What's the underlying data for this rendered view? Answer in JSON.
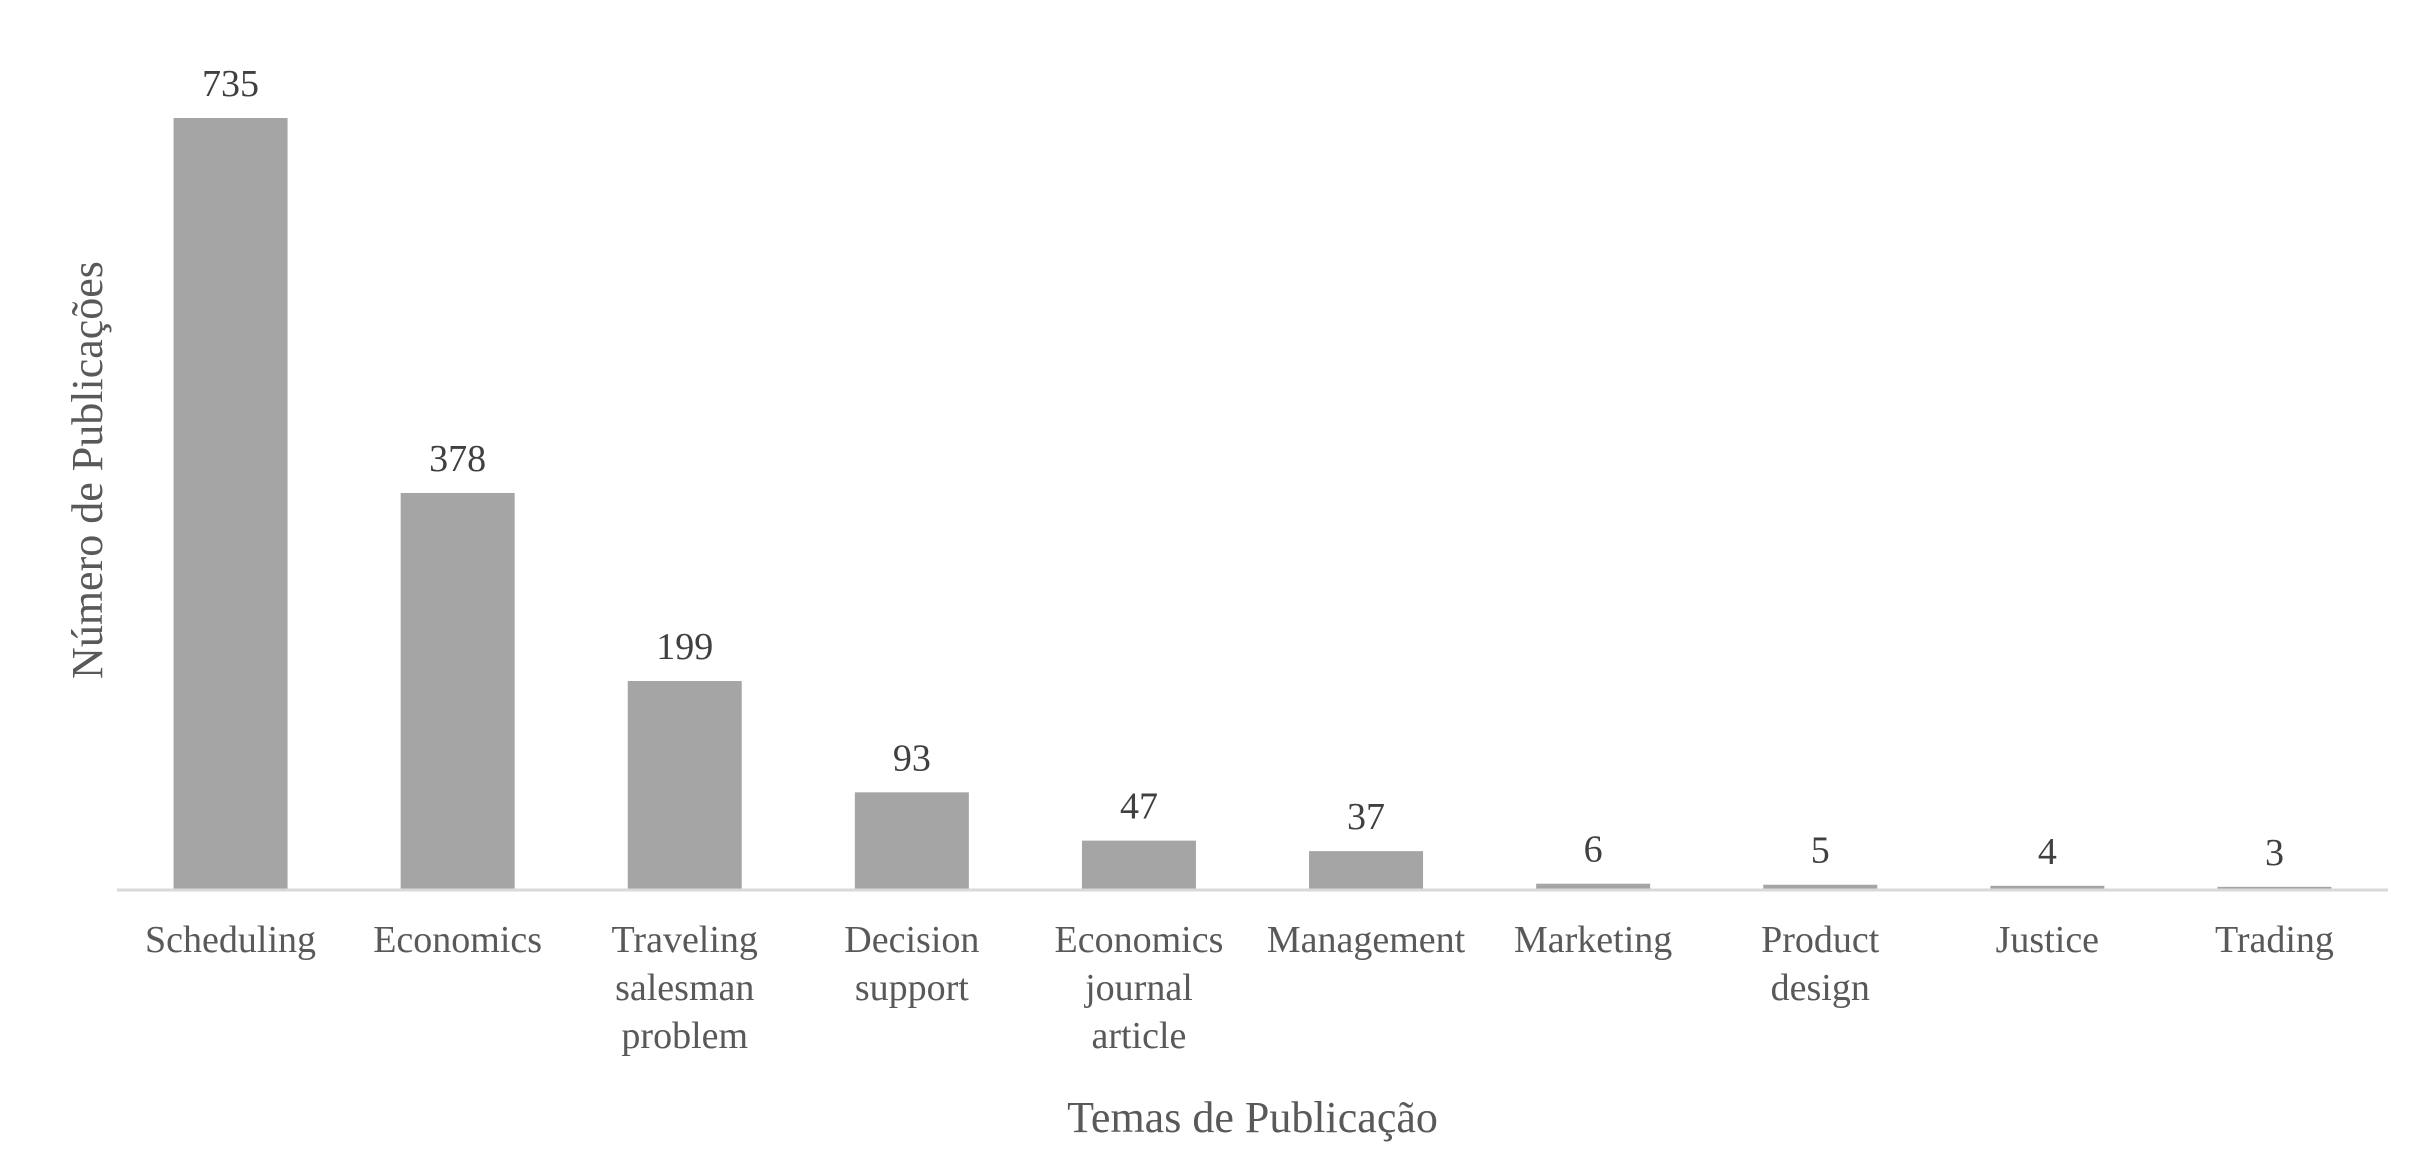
{
  "chart_data": {
    "type": "bar",
    "title": "",
    "xlabel": "Temas de Publicação",
    "ylabel": "Número de Publicações",
    "categories": [
      "Scheduling",
      "Economics",
      "Traveling salesman problem",
      "Decision support",
      "Economics journal article",
      "Management",
      "Marketing",
      "Product design",
      "Justice",
      "Trading"
    ],
    "category_lines": [
      [
        "Scheduling"
      ],
      [
        "Economics"
      ],
      [
        "Traveling",
        "salesman",
        "problem"
      ],
      [
        "Decision",
        "support"
      ],
      [
        "Economics",
        "journal",
        "article"
      ],
      [
        "Management"
      ],
      [
        "Marketing"
      ],
      [
        "Product",
        "design"
      ],
      [
        "Justice"
      ],
      [
        "Trading"
      ]
    ],
    "values": [
      735,
      378,
      199,
      93,
      47,
      37,
      6,
      5,
      4,
      3
    ],
    "data_labels": [
      "735",
      "378",
      "199",
      "93",
      "47",
      "37",
      "6",
      "5",
      "4",
      "3"
    ],
    "ylim": [
      0,
      735
    ],
    "grid": false,
    "legend": "none",
    "colors": {
      "bar": "#a5a5a5",
      "axis": "#d9d9d9",
      "label_text": "#404040",
      "axis_text": "#595959"
    }
  }
}
